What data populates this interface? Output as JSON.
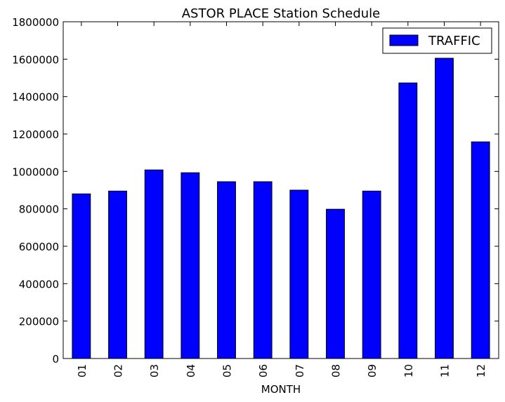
{
  "chart_data": {
    "type": "bar",
    "title": "ASTOR PLACE Station Schedule",
    "xlabel": "MONTH",
    "ylabel": "",
    "categories": [
      "01",
      "02",
      "03",
      "04",
      "05",
      "06",
      "07",
      "08",
      "09",
      "10",
      "11",
      "12"
    ],
    "series": [
      {
        "name": "TRAFFIC",
        "color": "#0000ff",
        "values": [
          880000,
          895000,
          1008000,
          993000,
          945000,
          945000,
          900000,
          798000,
          895000,
          1473000,
          1605000,
          1158000
        ]
      }
    ],
    "ylim": [
      0,
      1800000
    ],
    "yticks": [
      0,
      200000,
      400000,
      600000,
      800000,
      1000000,
      1200000,
      1400000,
      1600000,
      1800000
    ],
    "grid": false,
    "legend": "top-right"
  }
}
